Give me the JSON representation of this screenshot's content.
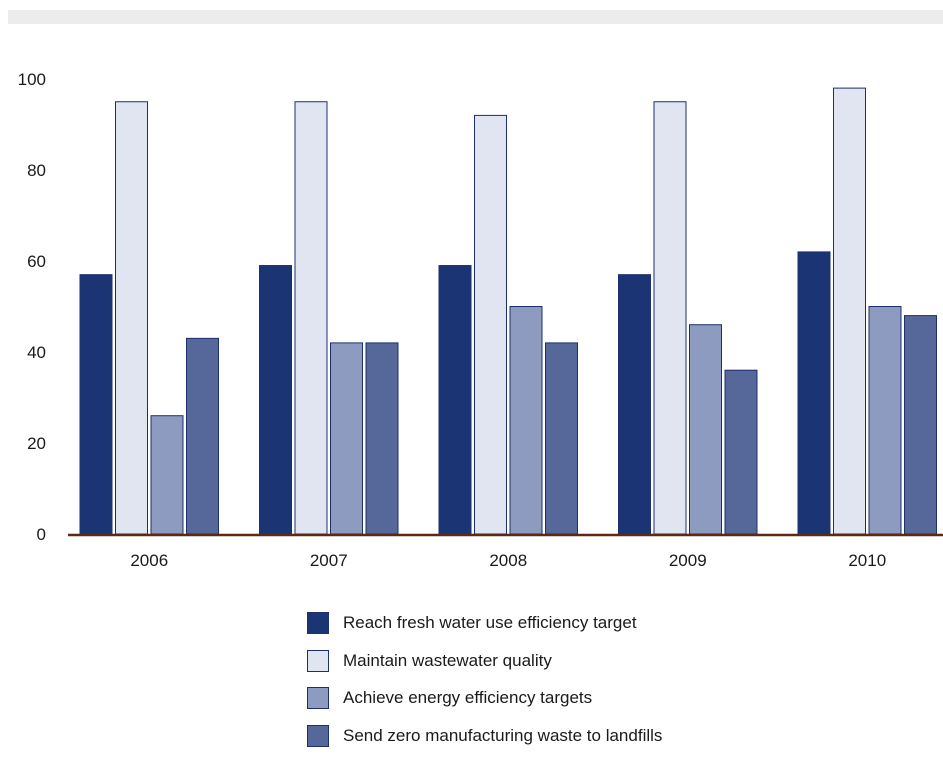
{
  "chart_data": {
    "type": "bar",
    "categories": [
      "2006",
      "2007",
      "2008",
      "2009",
      "2010"
    ],
    "series": [
      {
        "name": "Reach fresh water use efficiency target",
        "color": "#1b3474",
        "values": [
          57,
          59,
          59,
          57,
          62
        ]
      },
      {
        "name": "Maintain wastewater quality",
        "color": "#e1e5f1",
        "values": [
          95,
          95,
          92,
          95,
          98
        ]
      },
      {
        "name": "Achieve energy efficiency targets",
        "color": "#8d9bc1",
        "values": [
          26,
          42,
          50,
          46,
          50
        ]
      },
      {
        "name": "Send zero manufacturing waste to landfills",
        "color": "#56679a",
        "values": [
          43,
          42,
          42,
          36,
          48
        ]
      }
    ],
    "yticks": [
      0,
      20,
      40,
      60,
      80,
      100
    ],
    "ylim": [
      0,
      100
    ],
    "grid": false,
    "legend_position": "bottom",
    "axis_color": "#5a2a12"
  }
}
